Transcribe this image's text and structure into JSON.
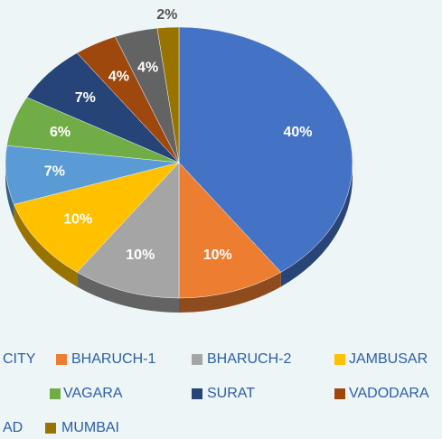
{
  "chart_data": {
    "type": "pie",
    "series": [
      {
        "name": "CITY",
        "color": "#4472c4",
        "values": [
          40
        ],
        "value_labels": [
          "40%"
        ]
      },
      {
        "name": "BHARUCH-1",
        "color": "#ed7d31",
        "values": [
          10
        ],
        "value_labels": [
          "10%"
        ]
      },
      {
        "name": "BHARUCH-2",
        "color": "#a5a5a5",
        "values": [
          10
        ],
        "value_labels": [
          "10%"
        ]
      },
      {
        "name": "JAMBUSAR",
        "color": "#ffc000",
        "values": [
          10
        ],
        "value_labels": [
          "10%"
        ]
      },
      {
        "name": null,
        "color": "#5b9bd5",
        "values": [
          7
        ],
        "value_labels": [
          "7%"
        ]
      },
      {
        "name": "VAGARA",
        "color": "#70ad47",
        "values": [
          6
        ],
        "value_labels": [
          "6%"
        ]
      },
      {
        "name": "SURAT",
        "color": "#264478",
        "values": [
          7
        ],
        "value_labels": [
          "7%"
        ]
      },
      {
        "name": "VADODARA",
        "color": "#9e480e",
        "values": [
          4
        ],
        "value_labels": [
          "4%"
        ]
      },
      {
        "name": "AD",
        "color": "#636363",
        "values": [
          4
        ],
        "value_labels": [
          "4%"
        ]
      },
      {
        "name": "MUMBAI",
        "color": "#997300",
        "values": [
          2
        ],
        "value_labels": [
          "2%"
        ]
      }
    ]
  }
}
